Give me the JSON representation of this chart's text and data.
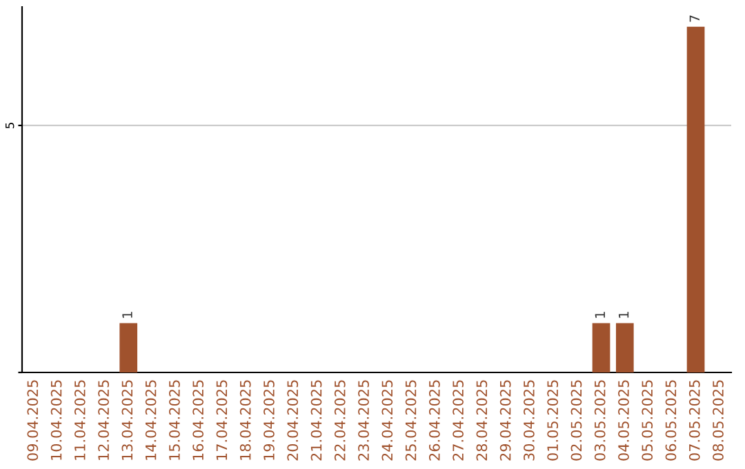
{
  "chart_data": {
    "type": "bar",
    "categories": [
      "09.04.2025",
      "10.04.2025",
      "11.04.2025",
      "12.04.2025",
      "13.04.2025",
      "14.04.2025",
      "15.04.2025",
      "16.04.2025",
      "17.04.2025",
      "18.04.2025",
      "19.04.2025",
      "20.04.2025",
      "21.04.2025",
      "22.04.2025",
      "23.04.2025",
      "24.04.2025",
      "25.04.2025",
      "26.04.2025",
      "27.04.2025",
      "28.04.2025",
      "29.04.2025",
      "30.04.2025",
      "01.05.2025",
      "02.05.2025",
      "03.05.2025",
      "04.05.2025",
      "05.05.2025",
      "06.05.2025",
      "07.05.2025",
      "08.05.2025"
    ],
    "values": [
      0,
      0,
      0,
      0,
      1,
      0,
      0,
      0,
      0,
      0,
      0,
      0,
      0,
      0,
      0,
      0,
      0,
      0,
      0,
      0,
      0,
      0,
      0,
      0,
      1,
      1,
      0,
      0,
      7,
      0
    ],
    "value_labels": [
      null,
      null,
      null,
      null,
      "1",
      null,
      null,
      null,
      null,
      null,
      null,
      null,
      null,
      null,
      null,
      null,
      null,
      null,
      null,
      null,
      null,
      null,
      null,
      null,
      "1",
      "1",
      null,
      null,
      "7",
      null
    ],
    "color": "#a0522d",
    "ylim": [
      0,
      7.4
    ],
    "yticks": [
      {
        "value": 0,
        "label": null
      },
      5
    ],
    "grid": "y"
  }
}
